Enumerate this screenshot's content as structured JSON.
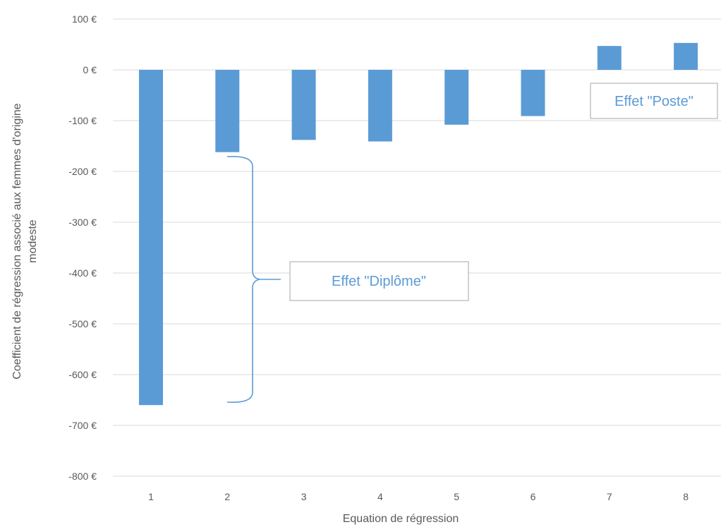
{
  "chart_data": {
    "type": "bar",
    "categories": [
      "1",
      "2",
      "3",
      "4",
      "5",
      "6",
      "7",
      "8"
    ],
    "values": [
      -660,
      -162,
      -138,
      -141,
      -108,
      -91,
      47,
      53
    ],
    "title": "",
    "xlabel": "Equation de régression",
    "ylabel": "Coefficient de régression associé aux femmes d'origine modeste",
    "ylim": [
      -800,
      100
    ],
    "yticks": [
      100,
      0,
      -100,
      -200,
      -300,
      -400,
      -500,
      -600,
      -700,
      -800
    ],
    "ytick_labels": [
      "100 €",
      "0 €",
      "-100 €",
      "-200 €",
      "-300 €",
      "-400 €",
      "-500 €",
      "-600 €",
      "-700 €",
      "-800 €"
    ],
    "grid": true,
    "legend": "none",
    "annotations": [
      {
        "text": "Effet \"Diplôme\"",
        "type": "brace",
        "from_category": "2",
        "y_from": -162,
        "y_to": -660
      },
      {
        "text": "Effet \"Poste\"",
        "type": "label"
      }
    ],
    "colors": {
      "bar": "#5b9bd5",
      "grid": "#d9d9d9",
      "text": "#595959",
      "annotation": "#5b9bd5"
    }
  }
}
